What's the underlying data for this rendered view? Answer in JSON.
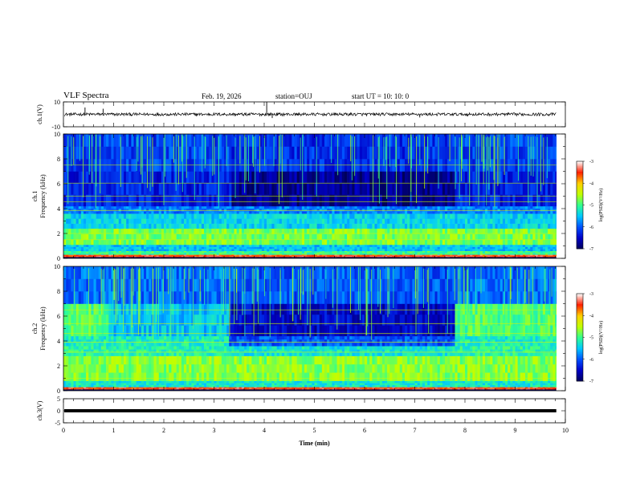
{
  "header": {
    "title": "VLF Spectra",
    "date": "Feb. 19, 2026",
    "station": "station=OUJ",
    "start": "start UT =   10: 10: 0"
  },
  "colors": {
    "colormap": [
      "#00005a",
      "#0000c8",
      "#0050ff",
      "#00c8ff",
      "#30ff90",
      "#c0ff00",
      "#ffd000",
      "#ff2000",
      "#ffffff"
    ],
    "trace": "#000000"
  },
  "chart_data": [
    {
      "type": "line",
      "name": "ch1-waveform",
      "ylabel": "ch.1(V)",
      "ylim": [
        -10,
        10
      ],
      "yticks": [
        "10",
        "-10"
      ],
      "level": 0,
      "noise_amplitude": 1.2,
      "xlim": [
        0,
        10
      ]
    },
    {
      "type": "heatmap",
      "name": "ch1-spectrogram",
      "ylabel": "ch.1",
      "ylabel2": "Frequency (kHz)",
      "ylim": [
        0,
        10
      ],
      "yticks": [
        "0",
        "2",
        "4",
        "6",
        "8",
        "10"
      ],
      "xlim": [
        0,
        10
      ],
      "data_end": 9.82,
      "colorbar": {
        "label": "log(PSD)(V²/Hz)",
        "range": [
          -7,
          -3
        ],
        "ticks": [
          "-3",
          "-4",
          "-5",
          "-6",
          "-7"
        ]
      },
      "segments": [
        {
          "t0": 0,
          "t1": 3.3,
          "mode": "active"
        },
        {
          "t0": 3.3,
          "t1": 7.75,
          "mode": "quiet"
        },
        {
          "t0": 7.75,
          "t1": 9.82,
          "mode": "active"
        }
      ],
      "bands": [
        {
          "f0": 0.1,
          "f1": 0.3,
          "level": 7
        },
        {
          "f0": 0.3,
          "f1": 0.6,
          "level": 4
        },
        {
          "f0": 0.6,
          "f1": 1.1,
          "level": 3
        },
        {
          "f0": 1.1,
          "f1": 2.4,
          "level": 4.5
        },
        {
          "f0": 2.4,
          "f1": 3.6,
          "level": 3.2
        },
        {
          "f0": 3.6,
          "f1": 4.2,
          "level": 2.4
        },
        {
          "f0": 4.2,
          "f1": 7.0,
          "level": 1.4,
          "quiet_level": 0.5
        },
        {
          "f0": 7.0,
          "f1": 10.0,
          "level": 1.8,
          "quiet_level": 1.6
        }
      ],
      "lines": [
        2.0,
        1.5,
        3.85,
        4.55,
        5.0,
        6.05,
        7.5
      ]
    },
    {
      "type": "heatmap",
      "name": "ch2-spectrogram",
      "ylabel": "ch.2",
      "ylabel2": "Frequency (kHz)",
      "ylim": [
        0,
        10
      ],
      "yticks": [
        "0",
        "2",
        "4",
        "6",
        "8",
        "10"
      ],
      "xlim": [
        0,
        10
      ],
      "data_end": 9.82,
      "colorbar": {
        "label": "log(PSD)(V²/Hz)",
        "range": [
          -7,
          -3
        ],
        "ticks": [
          "-3",
          "-4",
          "-5",
          "-6",
          "-7"
        ]
      },
      "segments": [
        {
          "t0": 0,
          "t1": 0.88,
          "mode": "hot"
        },
        {
          "t0": 0.88,
          "t1": 3.25,
          "mode": "active"
        },
        {
          "t0": 3.25,
          "t1": 7.75,
          "mode": "quiet"
        },
        {
          "t0": 7.75,
          "t1": 9.82,
          "mode": "hot"
        }
      ],
      "bands": [
        {
          "f0": 0.1,
          "f1": 0.3,
          "level": 7
        },
        {
          "f0": 0.3,
          "f1": 0.8,
          "level": 3.5
        },
        {
          "f0": 0.8,
          "f1": 2.8,
          "level": 4.6
        },
        {
          "f0": 2.8,
          "f1": 3.6,
          "level": 3.8,
          "quiet_level": 3.4
        },
        {
          "f0": 3.6,
          "f1": 4.4,
          "level": 3.6,
          "quiet_level": 2.0
        },
        {
          "f0": 4.4,
          "f1": 7.0,
          "level": 3.0,
          "quiet_level": 1.0
        },
        {
          "f0": 7.0,
          "f1": 10.0,
          "level": 2.2,
          "quiet_level": 2.0
        }
      ],
      "lines": [
        1.0,
        3.1,
        3.9,
        4.6,
        5.4,
        6.5
      ]
    },
    {
      "type": "line",
      "name": "ch3-waveform",
      "ylabel": "ch.3(V)",
      "ylim": [
        -5,
        5
      ],
      "yticks": [
        "5",
        "0",
        "-5"
      ],
      "level": 0,
      "noise_amplitude": 0.05,
      "xlim": [
        0,
        10
      ],
      "xlabel": "Time (min)",
      "xticks": [
        "0",
        "1",
        "2",
        "3",
        "4",
        "5",
        "6",
        "7",
        "8",
        "9",
        "10"
      ]
    }
  ]
}
